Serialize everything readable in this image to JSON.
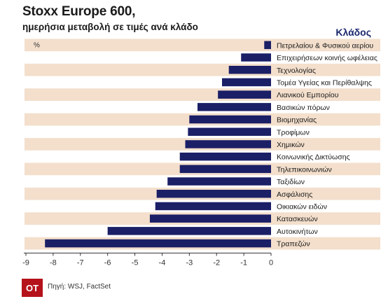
{
  "header": {
    "title": "Stoxx Europe 600,",
    "subtitle": "ημερήσια μεταβολή σε τιμές ανά κλάδο",
    "category_header": "Κλάδος"
  },
  "footer": {
    "logo": "ΟΤ",
    "source": "Πηγή: WSJ, FactSet"
  },
  "chart_data": {
    "type": "bar",
    "orientation": "horizontal",
    "unit_label": "%",
    "categories": [
      "Πετρελαίου & Φυσικού αερίου",
      "Επιχειρήσεων κοινής ωφέλειας",
      "Τεχνολογίας",
      "Τομέα Υγείας και Περίθαλψης",
      "Λιανικού Εμπορίου",
      "Βασικών πόρων",
      "Βιομηχανίας",
      "Τροφίμων",
      "Χημικών",
      "Κοινωνικής Δικτύωσης",
      "Τηλεπικοινωνιών",
      "Ταξιδίων",
      "Ασφάλισης",
      "Οικιακών ειδών",
      "Κατασκευών",
      "Αυτοκινήτων",
      "Τραπεζών"
    ],
    "values": [
      -0.25,
      -1.1,
      -1.55,
      -1.8,
      -1.95,
      -2.7,
      -3.0,
      -3.05,
      -3.15,
      -3.35,
      -3.35,
      -3.8,
      -4.2,
      -4.25,
      -4.45,
      -6.0,
      -8.3
    ],
    "xlim": [
      -9,
      0
    ],
    "xticks": [
      -9,
      -8,
      -7,
      -6,
      -5,
      -4,
      -3,
      -2,
      -1,
      0
    ],
    "colors": {
      "bar": "#1b1f66",
      "band": "#f3dfcc",
      "axis": "#333333"
    },
    "legend": "none",
    "grid": false
  }
}
